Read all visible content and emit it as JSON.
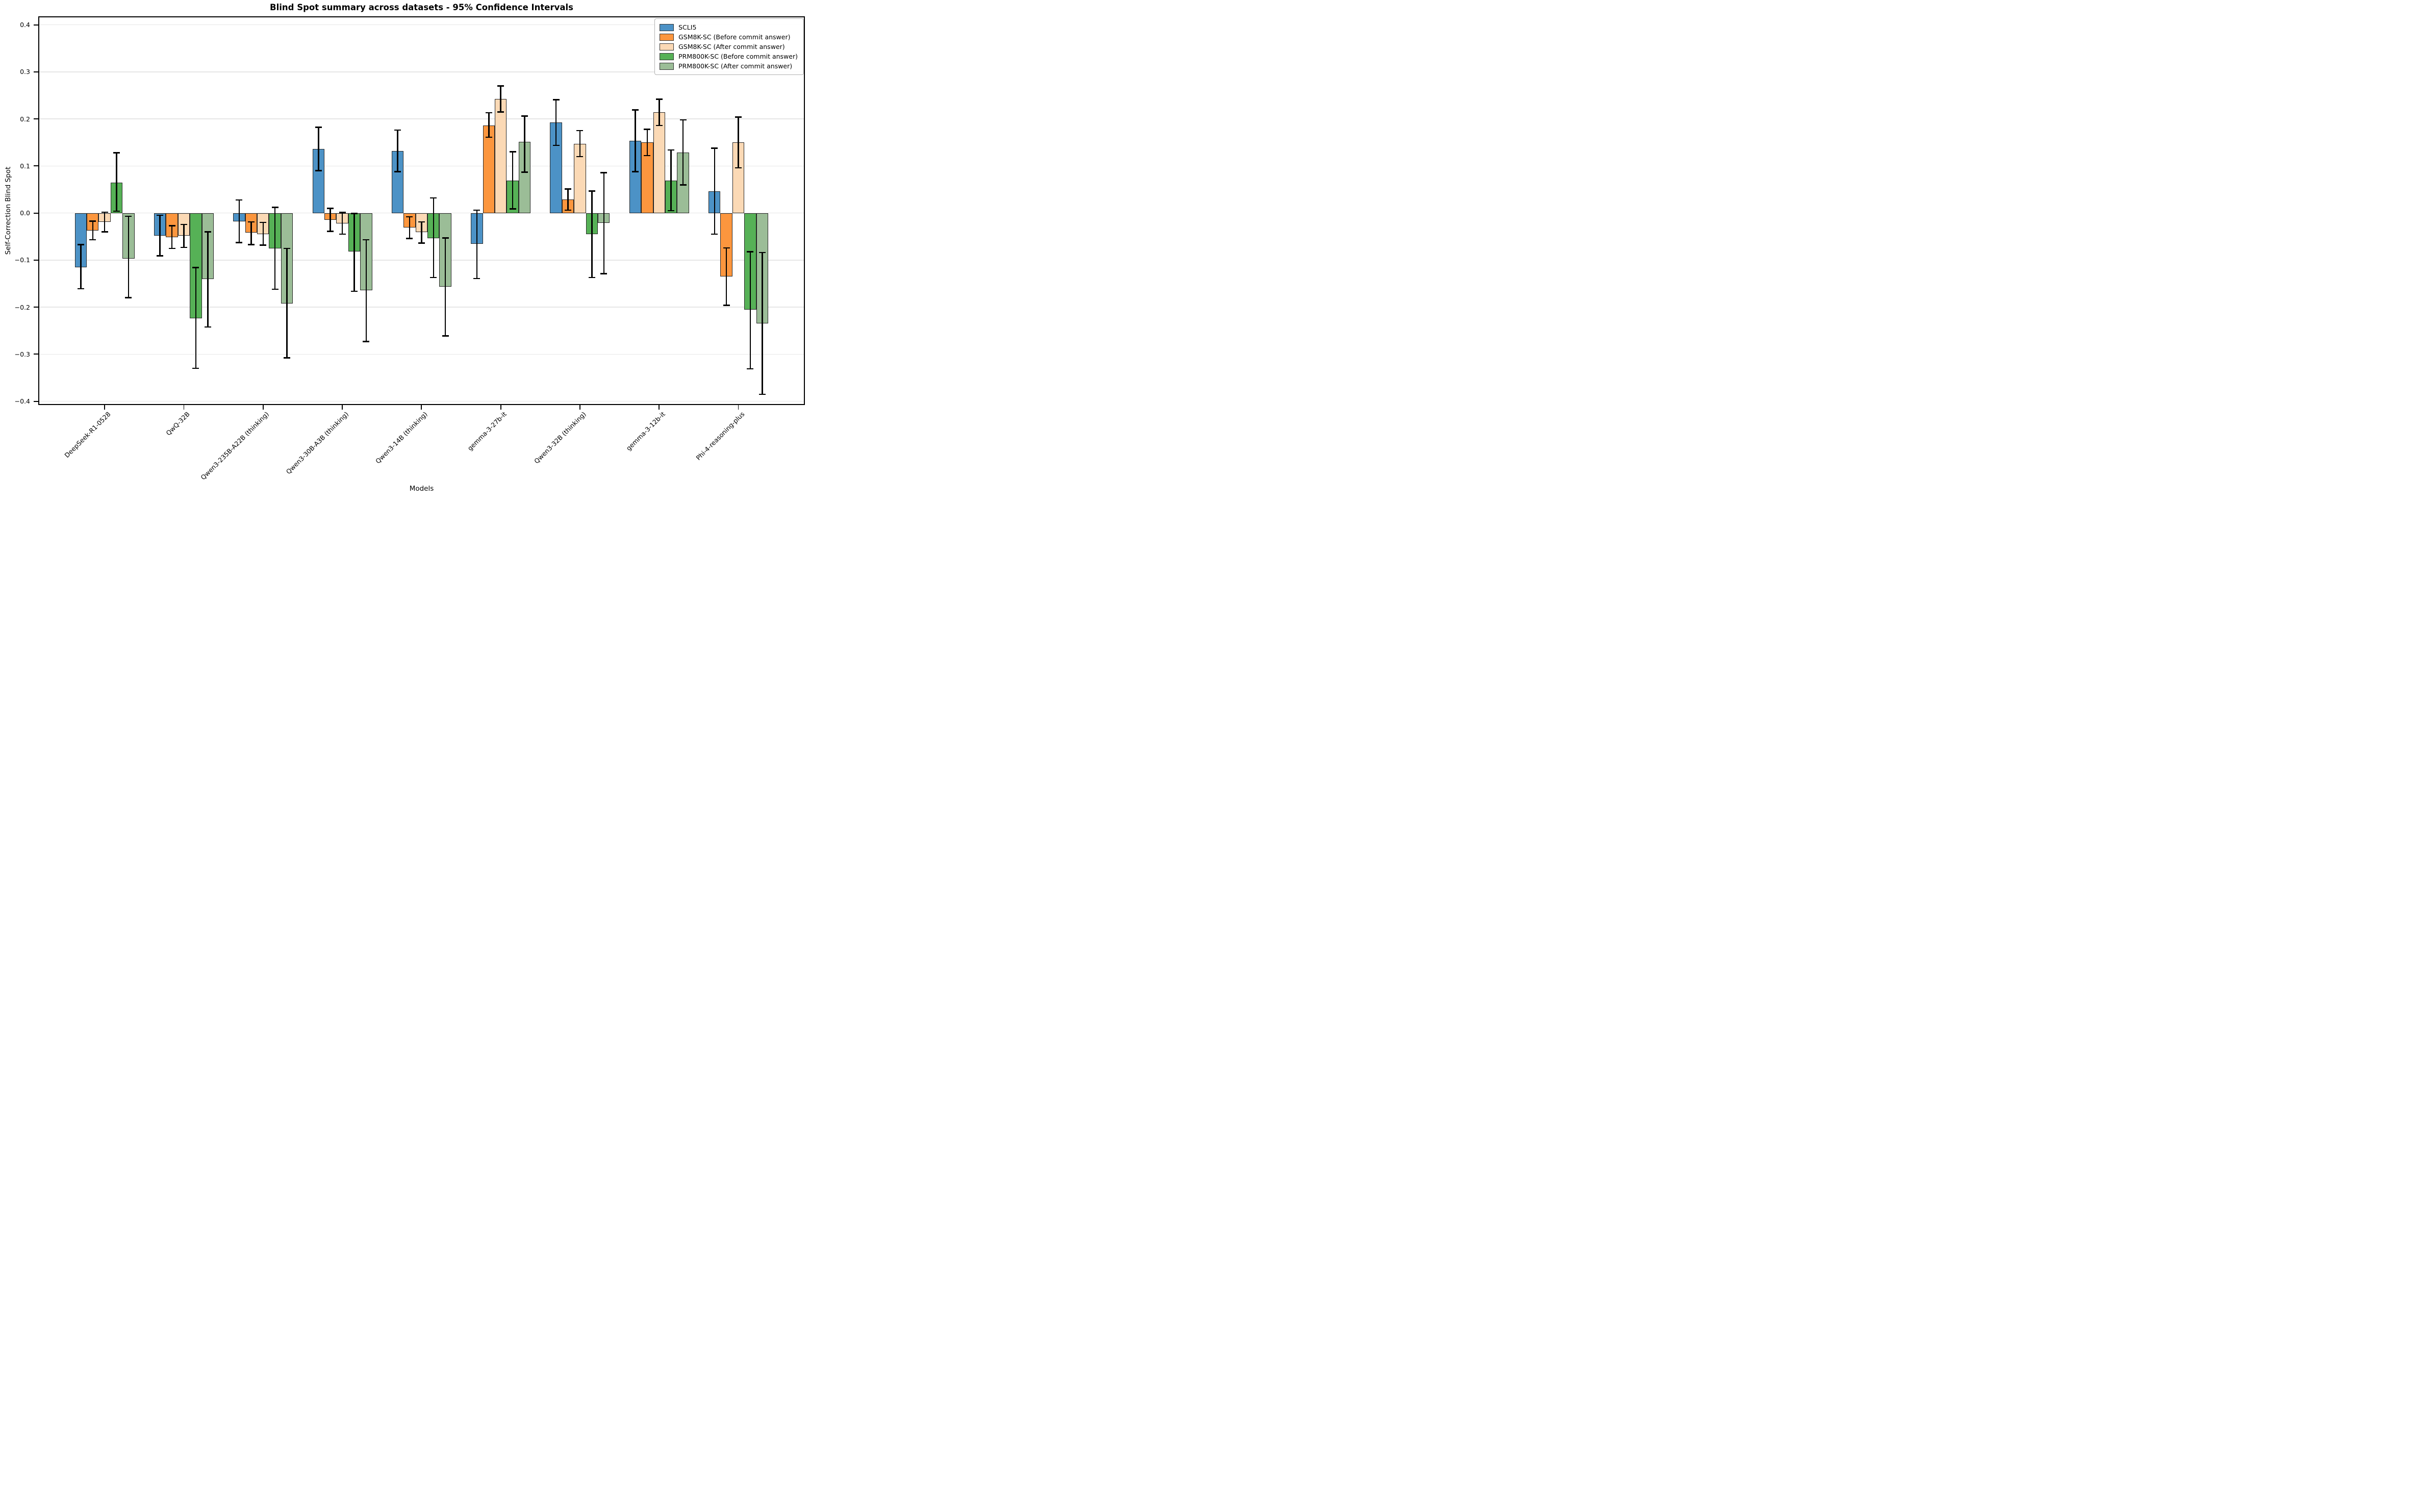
{
  "chart_data": {
    "type": "bar",
    "title": "Blind Spot summary across datasets - 95% Confidence Intervals",
    "xlabel": "Models",
    "ylabel": "Self-Correction Blind Spot",
    "error_bars": "95% Confidence Intervals",
    "grid": "horizontal",
    "legend_position": "upper right",
    "ylim": [
      -0.408,
      0.418
    ],
    "y_ticks": [
      {
        "label": "0.4",
        "value": 0.4
      },
      {
        "label": "0.3",
        "value": 0.3
      },
      {
        "label": "0.2",
        "value": 0.2
      },
      {
        "label": "0.1",
        "value": 0.1
      },
      {
        "label": "0.0",
        "value": 0.0
      },
      {
        "label": "−0.1",
        "value": -0.1
      },
      {
        "label": "−0.2",
        "value": -0.2
      },
      {
        "label": "−0.3",
        "value": -0.3
      },
      {
        "label": "−0.4",
        "value": -0.4
      }
    ],
    "categories": [
      "DeepSeek-R1-0528",
      "QwQ-32B",
      "Qwen3-235B-A22B (thinking)",
      "Qwen3-30B-A3B (thinking)",
      "Qwen3-14B (thinking)",
      "gemma-3-27b-it",
      "Qwen3-32B (thinking)",
      "gemma-3-12b-it",
      "Phi-4-reasoning-plus"
    ],
    "series": [
      {
        "name": "SCLI5",
        "color": "#4C92C6",
        "values": [
          -0.115,
          -0.048,
          -0.018,
          0.136,
          0.132,
          -0.066,
          0.192,
          0.153,
          0.046
        ],
        "ci_low": [
          -0.161,
          -0.091,
          -0.063,
          0.09,
          0.088,
          -0.139,
          0.144,
          0.088,
          -0.045
        ],
        "ci_high": [
          -0.067,
          -0.005,
          0.028,
          0.182,
          0.176,
          0.006,
          0.241,
          0.219,
          0.138
        ]
      },
      {
        "name": "GSM8K-SC (Before commit answer)",
        "color": "#FC963E",
        "values": [
          -0.037,
          -0.051,
          -0.042,
          -0.015,
          -0.031,
          0.186,
          0.029,
          0.15,
          -0.135
        ],
        "ci_low": [
          -0.057,
          -0.075,
          -0.067,
          -0.039,
          -0.054,
          0.161,
          0.006,
          0.122,
          -0.196
        ],
        "ci_high": [
          -0.017,
          -0.027,
          -0.019,
          0.01,
          -0.008,
          0.213,
          0.051,
          0.178,
          -0.074
        ]
      },
      {
        "name": "GSM8K-SC (After commit answer)",
        "color": "#FBD9B5",
        "values": [
          -0.019,
          -0.048,
          -0.045,
          -0.022,
          -0.041,
          0.242,
          0.147,
          0.214,
          0.15
        ],
        "ci_low": [
          -0.04,
          -0.073,
          -0.068,
          -0.045,
          -0.064,
          0.215,
          0.12,
          0.186,
          0.096
        ],
        "ci_high": [
          0.002,
          -0.024,
          -0.02,
          0.001,
          -0.019,
          0.27,
          0.175,
          0.242,
          0.204
        ]
      },
      {
        "name": "PRM800K-SC (Before commit answer)",
        "color": "#56B156",
        "values": [
          0.065,
          -0.224,
          -0.075,
          -0.082,
          -0.054,
          0.069,
          -0.045,
          0.069,
          -0.205
        ],
        "ci_low": [
          0.004,
          -0.33,
          -0.162,
          -0.166,
          -0.137,
          0.009,
          -0.137,
          0.005,
          -0.331
        ],
        "ci_high": [
          0.128,
          -0.116,
          0.012,
          -0.001,
          0.032,
          0.13,
          0.047,
          0.134,
          -0.082
        ]
      },
      {
        "name": "PRM800K-SC (After commit answer)",
        "color": "#9BBD97",
        "values": [
          -0.097,
          -0.14,
          -0.192,
          -0.164,
          -0.157,
          0.151,
          -0.021,
          0.129,
          -0.235
        ],
        "ci_low": [
          -0.18,
          -0.242,
          -0.308,
          -0.273,
          -0.261,
          0.087,
          -0.129,
          0.06,
          -0.385
        ],
        "ci_high": [
          -0.007,
          -0.04,
          -0.075,
          -0.057,
          -0.053,
          0.206,
          0.086,
          0.198,
          -0.084
        ]
      }
    ]
  }
}
